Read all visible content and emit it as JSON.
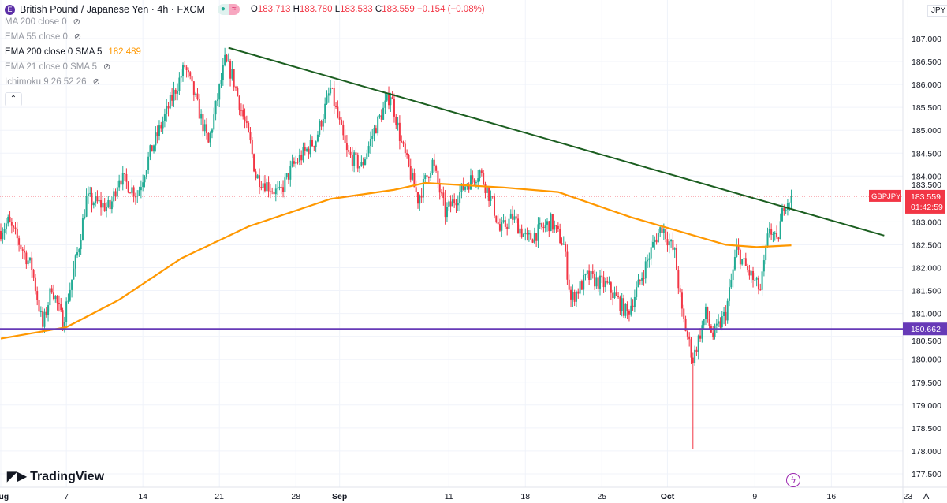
{
  "header": {
    "symbol_badge": "E",
    "title": "British Pound / Japanese Yen · 4h · FXCM",
    "ohlc": {
      "o_label": "O",
      "o": "183.713",
      "h_label": "H",
      "h": "183.780",
      "l_label": "L",
      "l": "183.533",
      "c_label": "C",
      "c": "183.559",
      "change": "−0.154 (−0.08%)"
    }
  },
  "indicators": [
    {
      "label": "MA 200 close 0",
      "visible": false
    },
    {
      "label": "EMA 55 close 0",
      "visible": false
    },
    {
      "label": "EMA 200 close 0 SMA 5",
      "visible": true,
      "value": "182.489"
    },
    {
      "label": "EMA 21 close 0 SMA 5",
      "visible": false
    },
    {
      "label": "Ichimoku 9 26 52 26",
      "visible": false
    }
  ],
  "currency": "JPY",
  "brand": "TradingView",
  "auto_label": "A",
  "colors": {
    "up": "#22ab94",
    "down": "#f23645",
    "ema": "#ff9800",
    "trend": "#1b5e20",
    "support": "#673ab7"
  },
  "chart_data": {
    "type": "candlestick",
    "timeframe": "4h",
    "ylim": [
      177.25,
      187.5
    ],
    "y_ticks": [
      "187.000",
      "186.500",
      "186.000",
      "185.500",
      "185.000",
      "184.500",
      "184.000",
      "183.500",
      "183.000",
      "182.500",
      "182.000",
      "181.500",
      "181.000",
      "180.500",
      "180.000",
      "179.500",
      "179.000",
      "178.500",
      "178.000",
      "177.500"
    ],
    "x_ticks": [
      [
        "08-01",
        "Aug"
      ],
      [
        "08-07",
        "7"
      ],
      [
        "08-14",
        "14"
      ],
      [
        "08-21",
        "21"
      ],
      [
        "08-28",
        "28"
      ],
      [
        "09-01",
        "Sep"
      ],
      [
        "09-11",
        "11"
      ],
      [
        "09-18",
        "18"
      ],
      [
        "09-25",
        "25"
      ],
      [
        "10-01",
        "Oct"
      ],
      [
        "10-09",
        "9"
      ],
      [
        "10-16",
        "16"
      ],
      [
        "10-23",
        "23"
      ]
    ],
    "price_path": [
      [
        "08-01 00",
        182.8
      ],
      [
        "08-01 16",
        183.0
      ],
      [
        "08-03 20",
        182.0
      ],
      [
        "08-04 20",
        180.7
      ],
      [
        "08-05 16",
        181.6
      ],
      [
        "08-06 16",
        180.8
      ],
      [
        "08-08 04",
        182.5
      ],
      [
        "08-08 20",
        183.5
      ],
      [
        "08-11 00",
        183.3
      ],
      [
        "08-11 20",
        184.0
      ],
      [
        "08-13 12",
        183.6
      ],
      [
        "08-14 16",
        184.5
      ],
      [
        "08-16 20",
        185.8
      ],
      [
        "08-17 20",
        186.4
      ],
      [
        "08-18 16",
        185.8
      ],
      [
        "08-20 00",
        184.7
      ],
      [
        "08-21 12",
        186.5
      ],
      [
        "08-22 04",
        186.2
      ],
      [
        "08-23 20",
        184.7
      ],
      [
        "08-24 08",
        184.0
      ],
      [
        "08-26 12",
        183.6
      ],
      [
        "08-27 16",
        184.2
      ],
      [
        "08-29 20",
        184.8
      ],
      [
        "08-31 04",
        185.9
      ],
      [
        "09-01 16",
        184.5
      ],
      [
        "09-03 00",
        184.2
      ],
      [
        "09-04 04",
        185.0
      ],
      [
        "09-05 16",
        185.8
      ],
      [
        "09-06 16",
        184.7
      ],
      [
        "09-08 04",
        183.5
      ],
      [
        "09-09 12",
        184.3
      ],
      [
        "09-10 16",
        183.2
      ],
      [
        "09-12 12",
        183.8
      ],
      [
        "09-13 20",
        184.1
      ],
      [
        "09-15 00",
        183.4
      ],
      [
        "09-15 16",
        182.8
      ],
      [
        "09-16 20",
        183.1
      ],
      [
        "09-18 04",
        182.6
      ],
      [
        "09-20 08",
        183.0
      ],
      [
        "09-21 12",
        182.5
      ],
      [
        "09-22 04",
        181.3
      ],
      [
        "09-23 16",
        181.8
      ],
      [
        "09-25 12",
        181.6
      ],
      [
        "09-27 08",
        181.0
      ],
      [
        "09-28 08",
        181.6
      ],
      [
        "09-29 20",
        182.6
      ],
      [
        "09-30 12",
        182.9
      ],
      [
        "10-01 16",
        182.3
      ],
      [
        "10-02 08",
        181.0
      ],
      [
        "10-03 08",
        180.0
      ],
      [
        "10-04 12",
        181.0
      ],
      [
        "10-05 04",
        180.5
      ],
      [
        "10-06 08",
        181.0
      ],
      [
        "10-07 08",
        182.4
      ],
      [
        "10-08 04",
        182.0
      ],
      [
        "10-09 12",
        181.5
      ],
      [
        "10-10 08",
        182.9
      ],
      [
        "10-11 00",
        182.5
      ],
      [
        "10-11 16",
        183.4
      ],
      [
        "10-12 08",
        183.559
      ]
    ],
    "spike_low": [
      "10-03 08",
      178.05
    ],
    "ema200": [
      [
        "08-01 00",
        180.45
      ],
      [
        "08-07 00",
        180.7
      ],
      [
        "08-11 20",
        181.3
      ],
      [
        "08-17 12",
        182.2
      ],
      [
        "08-23 16",
        182.9
      ],
      [
        "08-31 04",
        183.5
      ],
      [
        "09-06 00",
        183.7
      ],
      [
        "09-08 20",
        183.85
      ],
      [
        "09-16 00",
        183.75
      ],
      [
        "09-21 00",
        183.65
      ],
      [
        "09-27 16",
        183.1
      ],
      [
        "10-02 00",
        182.8
      ],
      [
        "10-06 08",
        182.5
      ],
      [
        "10-09 04",
        182.45
      ],
      [
        "10-12 08",
        182.489
      ]
    ],
    "trendline": [
      [
        "08-21 20",
        186.8
      ],
      [
        "10-20 20",
        182.7
      ]
    ],
    "support_level": 180.662,
    "support_label": "180.662",
    "last_price": 183.559,
    "last_label": "183.559",
    "countdown": "01:42:59",
    "symbol_tag": "GBPJPY"
  }
}
